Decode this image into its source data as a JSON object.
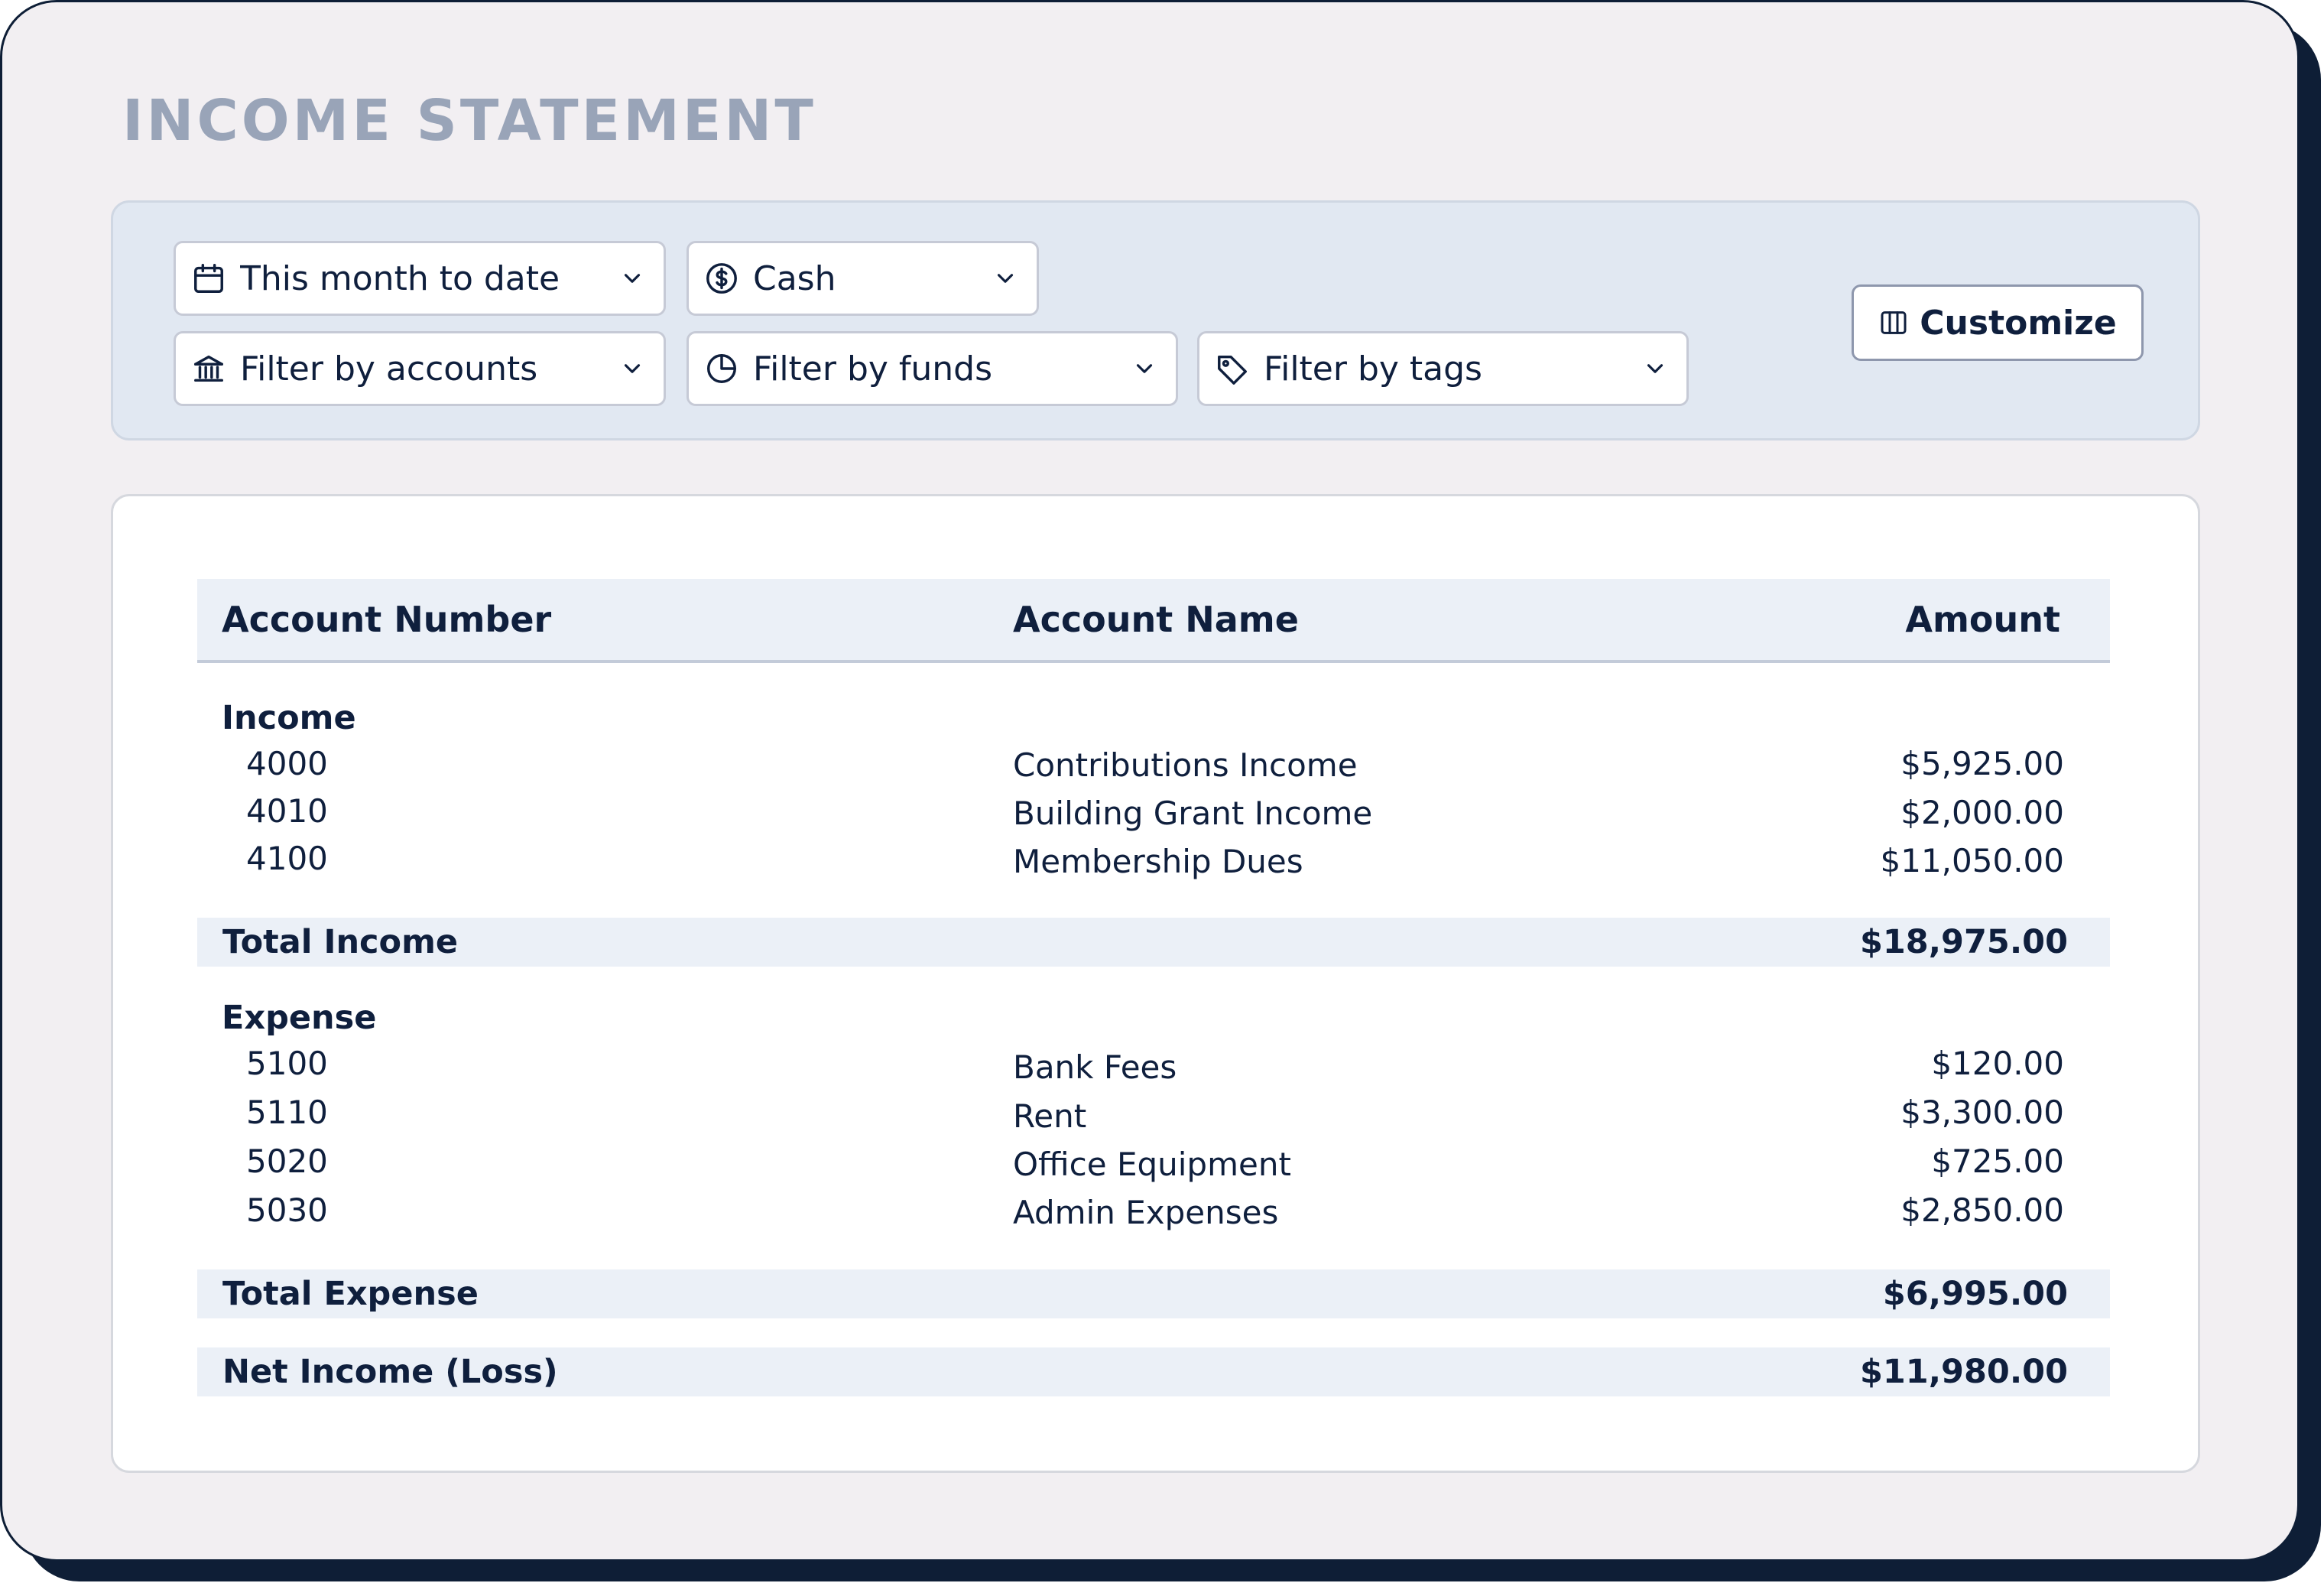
{
  "page": {
    "title": "INCOME STATEMENT"
  },
  "filters": {
    "date_range": {
      "value": "This month to date",
      "icon": "calendar-icon"
    },
    "basis": {
      "value": "Cash",
      "icon": "dollar-circle-icon"
    },
    "accounts": {
      "value": "Filter by accounts",
      "icon": "bank-icon"
    },
    "funds": {
      "value": "Filter by funds",
      "icon": "pie-chart-icon"
    },
    "tags": {
      "value": "Filter by tags",
      "icon": "tag-icon"
    },
    "customize_label": "Customize"
  },
  "table": {
    "headers": {
      "account_number": "Account Number",
      "account_name": "Account Name",
      "amount": "Amount"
    },
    "income": {
      "label": "Income",
      "rows": [
        {
          "number": "4000",
          "name": "Contributions Income",
          "amount": "$5,925.00"
        },
        {
          "number": "4010",
          "name": "Building Grant Income",
          "amount": "$2,000.00"
        },
        {
          "number": "4100",
          "name": "Membership Dues",
          "amount": "$11,050.00"
        }
      ],
      "total_label": "Total Income",
      "total_amount": "$18,975.00"
    },
    "expense": {
      "label": "Expense",
      "rows": [
        {
          "number": "5100",
          "name": "Bank Fees",
          "amount": "$120.00"
        },
        {
          "number": "5110",
          "name": "Rent",
          "amount": "$3,300.00"
        },
        {
          "number": "5020",
          "name": "Office Equipment",
          "amount": "$725.00"
        },
        {
          "number": "5030",
          "name": "Admin Expenses",
          "amount": "$2,850.00"
        }
      ],
      "total_label": "Total Expense",
      "total_amount": "$6,995.00"
    },
    "net": {
      "label": "Net Income (Loss)",
      "amount": "$11,980.00"
    }
  },
  "colors": {
    "title": "#99a4b8",
    "text": "#0f1f3d",
    "panel": "#e1e8f2",
    "band": "#ebf0f7",
    "frame_shadow": "#0e1e36"
  }
}
